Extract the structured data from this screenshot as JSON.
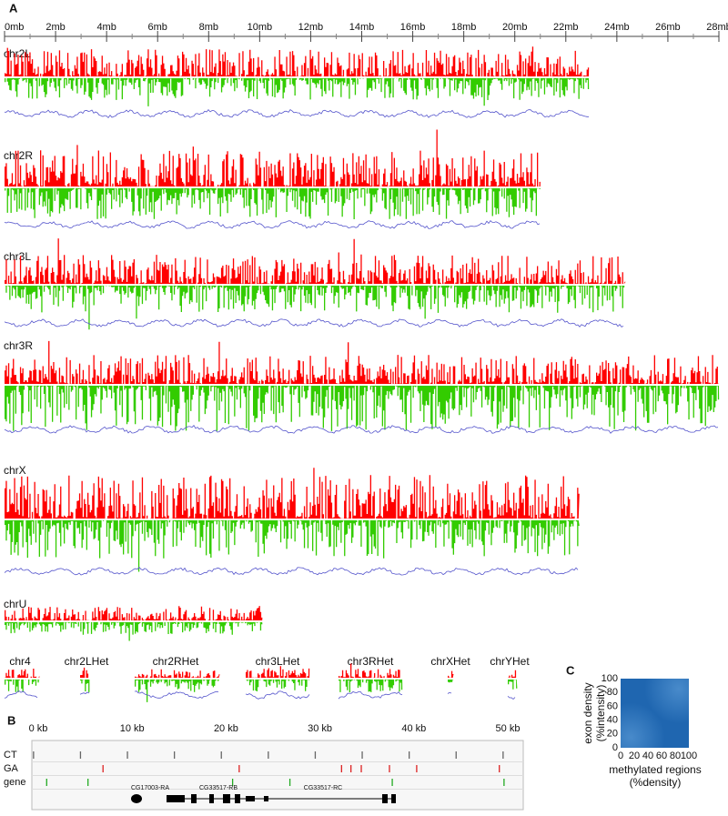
{
  "panel_a": {
    "label": "A",
    "ruler": {
      "xlim": [
        0,
        28
      ],
      "ticks": [
        {
          "value": 0,
          "label": "0mb"
        },
        {
          "value": 2,
          "label": "2mb"
        },
        {
          "value": 4,
          "label": "4mb"
        },
        {
          "value": 6,
          "label": "6mb"
        },
        {
          "value": 8,
          "label": "8mb"
        },
        {
          "value": 10,
          "label": "10mb"
        },
        {
          "value": 12,
          "label": "12mb"
        },
        {
          "value": 14,
          "label": "14mb"
        },
        {
          "value": 16,
          "label": "16mb"
        },
        {
          "value": 18,
          "label": "18mb"
        },
        {
          "value": 20,
          "label": "20mb"
        },
        {
          "value": 22,
          "label": "22mb"
        },
        {
          "value": 24,
          "label": "24mb"
        },
        {
          "value": 26,
          "label": "26mb"
        },
        {
          "value": 28,
          "label": "28mb"
        }
      ]
    },
    "colors": {
      "up": "#ff0000",
      "down": "#33cc00",
      "line": "#5555cc"
    },
    "chromosomes": [
      {
        "name": "chr2L",
        "length": 22.9
      },
      {
        "name": "chr2R",
        "length": 21.0
      },
      {
        "name": "chr3L",
        "length": 24.3
      },
      {
        "name": "chr3R",
        "length": 28.0
      },
      {
        "name": "chrX",
        "length": 22.5
      },
      {
        "name": "chrU",
        "length": 10.1
      }
    ],
    "heterochromatin": [
      {
        "name": "chr4",
        "length": 1.35
      },
      {
        "name": "chr2LHet",
        "length": 0.37
      },
      {
        "name": "chr2RHet",
        "length": 3.3
      },
      {
        "name": "chr3LHet",
        "length": 2.5
      },
      {
        "name": "chr3RHet",
        "length": 2.5
      },
      {
        "name": "chrXHet",
        "length": 0.2
      },
      {
        "name": "chrYHet",
        "length": 0.35
      }
    ]
  },
  "panel_b": {
    "label": "B",
    "xlim": [
      0,
      50
    ],
    "ticks": [
      {
        "value": 0,
        "label": "0 kb"
      },
      {
        "value": 10,
        "label": "10 kb"
      },
      {
        "value": 20,
        "label": "20 kb"
      },
      {
        "value": 30,
        "label": "30 kb"
      },
      {
        "value": 40,
        "label": "40 kb"
      },
      {
        "value": 50,
        "label": "50 kb"
      }
    ],
    "tracks": [
      {
        "name": "CT",
        "color": "#666666",
        "sites": [
          -0.5,
          4.5,
          9.5,
          14.5,
          19.5,
          24.5,
          29.5,
          34.5,
          39.5,
          44.5,
          49.5
        ]
      },
      {
        "name": "GA",
        "color": "#dd2222",
        "sites": [
          6.9,
          21.4,
          32.3,
          33.3,
          34.4,
          37.4,
          40.3,
          49.1
        ]
      },
      {
        "name": "gene",
        "color": "#22aa22",
        "sites": [
          0.9,
          5.3,
          20.7,
          26.8,
          37.7,
          49.6
        ]
      }
    ],
    "genes": [
      "CG17003-RA",
      "CG33517-RB",
      "CG33517-RC"
    ]
  },
  "panel_c": {
    "label": "C",
    "xlim": [
      0,
      100
    ],
    "xticks": [
      0,
      20,
      40,
      60,
      80,
      100
    ],
    "ylim": [
      0,
      100
    ],
    "yticks": [
      0,
      20,
      40,
      60,
      80,
      100
    ],
    "x_label": [
      "methylated regions",
      "(%density)"
    ],
    "y_label": [
      "exon density",
      "(%intensity)"
    ],
    "color": "#1f66b0"
  }
}
